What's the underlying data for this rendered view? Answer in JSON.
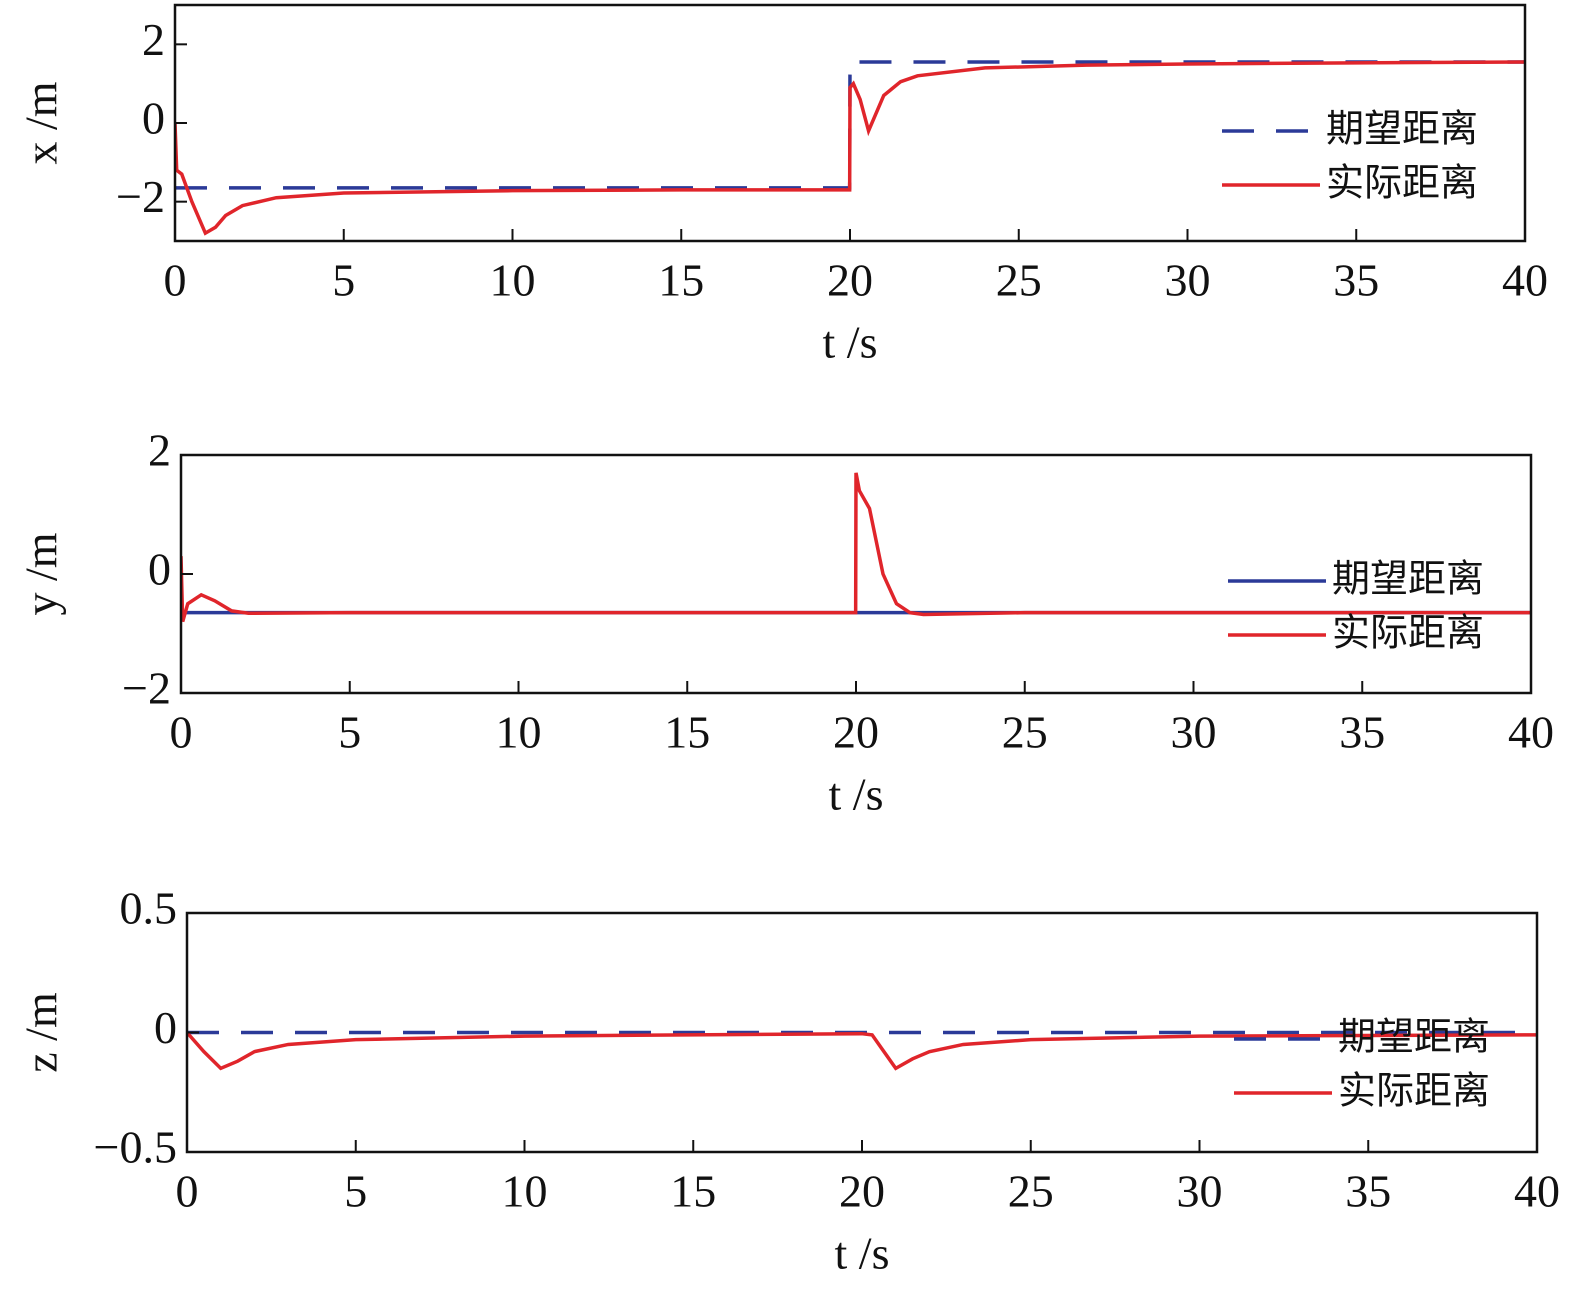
{
  "chart_data": [
    {
      "type": "line",
      "xlabel": "t /s",
      "ylabel": "x /m",
      "legend": "upper right",
      "xlim": [
        0,
        40
      ],
      "xticks": [
        0,
        5,
        10,
        15,
        20,
        25,
        30,
        35,
        40
      ],
      "ylim": [
        -3,
        3
      ],
      "yticks": [
        {
          "value": -2,
          "label": "−2"
        },
        0,
        2
      ],
      "x": [
        0,
        0.05,
        0.2,
        0.5,
        0.9,
        1.2,
        1.5,
        2,
        3,
        5,
        10,
        15,
        19.99,
        20,
        20.1,
        20.3,
        20.55,
        20.8,
        21,
        21.5,
        22,
        24,
        27,
        30,
        35,
        40
      ],
      "series": [
        {
          "name": "期望距离",
          "color": "#2b3a98",
          "dashed": true,
          "values": [
            -1.65,
            -1.65,
            -1.65,
            -1.65,
            -1.65,
            -1.65,
            -1.65,
            -1.65,
            -1.65,
            -1.65,
            -1.65,
            -1.65,
            -1.65,
            1.55,
            1.55,
            1.55,
            1.55,
            1.55,
            1.55,
            1.55,
            1.55,
            1.55,
            1.55,
            1.55,
            1.55,
            1.55
          ]
        },
        {
          "name": "实际距离",
          "color": "#e0252b",
          "dashed": false,
          "values": [
            0,
            -1.2,
            -1.3,
            -2.0,
            -2.8,
            -2.65,
            -2.35,
            -2.1,
            -1.9,
            -1.78,
            -1.72,
            -1.7,
            -1.7,
            0.9,
            1.0,
            0.6,
            -0.2,
            0.3,
            0.7,
            1.05,
            1.2,
            1.4,
            1.47,
            1.5,
            1.53,
            1.55
          ]
        }
      ]
    },
    {
      "type": "line",
      "xlabel": "t /s",
      "ylabel": "y /m",
      "legend": "upper right",
      "xlim": [
        0,
        40
      ],
      "xticks": [
        0,
        5,
        10,
        15,
        20,
        25,
        30,
        35,
        40
      ],
      "ylim": [
        -2,
        2
      ],
      "yticks": [
        {
          "value": -2,
          "label": "−2"
        },
        0,
        2
      ],
      "x": [
        0,
        0.05,
        0.2,
        0.6,
        1,
        1.5,
        2,
        5,
        10,
        15,
        19.99,
        20,
        20.1,
        20.4,
        20.8,
        21.2,
        21.6,
        22,
        25,
        30,
        35,
        40
      ],
      "series": [
        {
          "name": "期望距离",
          "color": "#2b3a98",
          "dashed": false,
          "values": [
            -0.65,
            -0.65,
            -0.65,
            -0.65,
            -0.65,
            -0.65,
            -0.65,
            -0.65,
            -0.65,
            -0.65,
            -0.65,
            -0.65,
            -0.65,
            -0.65,
            -0.65,
            -0.65,
            -0.65,
            -0.65,
            -0.65,
            -0.65,
            -0.65,
            -0.65
          ]
        },
        {
          "name": "实际距离",
          "color": "#e0252b",
          "dashed": false,
          "values": [
            0.3,
            -0.8,
            -0.5,
            -0.35,
            -0.45,
            -0.62,
            -0.66,
            -0.65,
            -0.65,
            -0.65,
            -0.65,
            1.7,
            1.4,
            1.1,
            0,
            -0.5,
            -0.65,
            -0.68,
            -0.65,
            -0.65,
            -0.65,
            -0.65
          ]
        }
      ]
    },
    {
      "type": "line",
      "xlabel": "t /s",
      "ylabel": "z /m",
      "legend": "upper right",
      "xlim": [
        0,
        40
      ],
      "xticks": [
        0,
        5,
        10,
        15,
        20,
        25,
        30,
        35,
        40
      ],
      "ylim": [
        -0.5,
        0.5
      ],
      "yticks": [
        {
          "value": -0.5,
          "label": "−0.5"
        },
        0,
        0.5
      ],
      "x": [
        0,
        0.5,
        1,
        1.5,
        2,
        3,
        5,
        10,
        19.99,
        20.3,
        20.6,
        21,
        21.5,
        22,
        23,
        25,
        30,
        40
      ],
      "series": [
        {
          "name": "期望距离",
          "color": "#2b3a98",
          "dashed": true,
          "values": [
            0,
            0,
            0,
            0,
            0,
            0,
            0,
            0,
            0,
            0,
            0,
            0,
            0,
            0,
            0,
            0,
            0,
            0
          ]
        },
        {
          "name": "实际距离",
          "color": "#e0252b",
          "dashed": false,
          "values": [
            0,
            -0.08,
            -0.15,
            -0.12,
            -0.08,
            -0.05,
            -0.03,
            -0.015,
            -0.005,
            -0.01,
            -0.07,
            -0.15,
            -0.11,
            -0.08,
            -0.05,
            -0.03,
            -0.015,
            -0.01
          ]
        }
      ]
    }
  ]
}
